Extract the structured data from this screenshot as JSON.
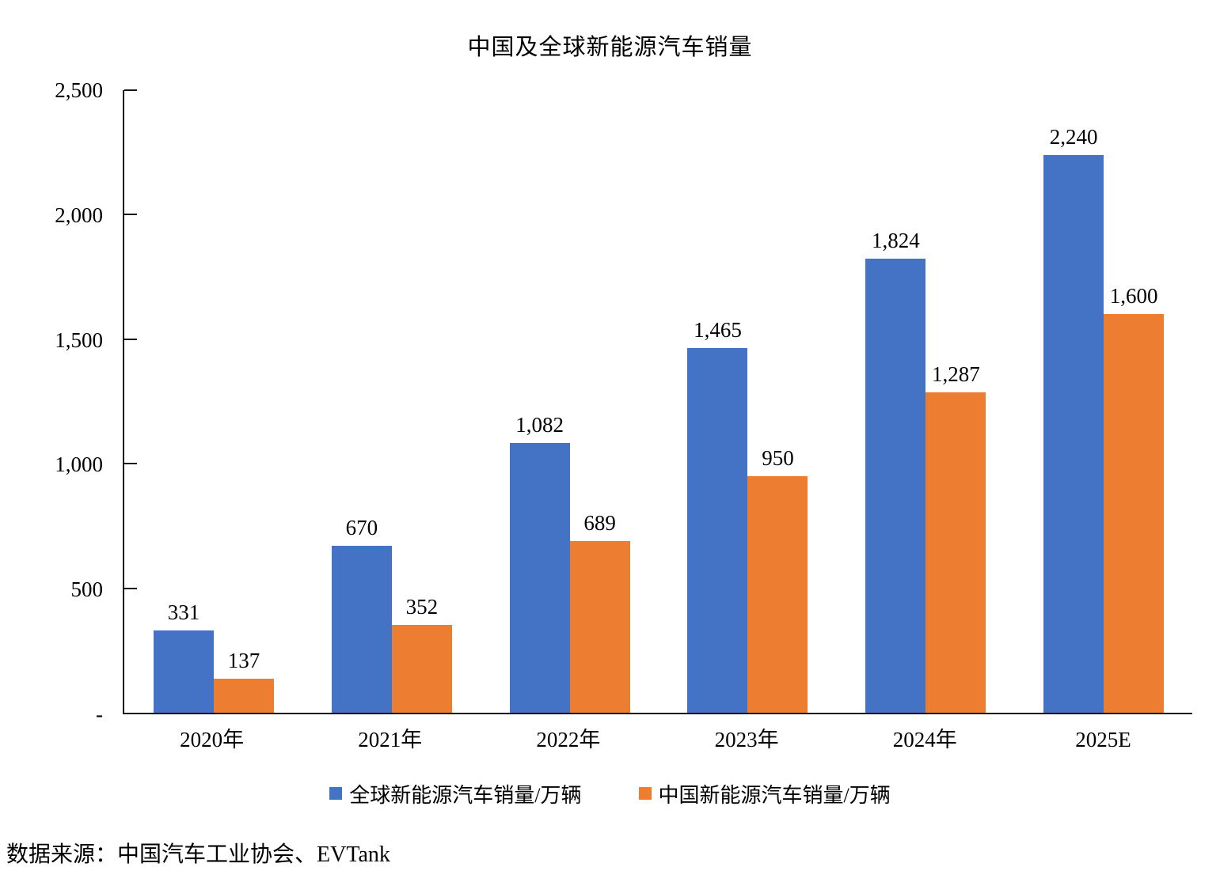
{
  "source_note": "数据来源：中国汽车工业协会、EVTank",
  "colors": {
    "global_series": "#4472C4",
    "china_series": "#ED7D31",
    "axis": "#161616",
    "text": "#000000",
    "background": "#FFFFFF"
  },
  "chart_data": {
    "type": "bar",
    "title": "中国及全球新能源汽车销量",
    "categories": [
      "2020年",
      "2021年",
      "2022年",
      "2023年",
      "2024年",
      "2025E"
    ],
    "series": [
      {
        "name": "全球新能源汽车销量/万辆",
        "color": "#4472C4",
        "values": [
          331,
          670,
          1082,
          1465,
          1824,
          2240
        ],
        "labels": [
          "331",
          "670",
          "1,082",
          "1,465",
          "1,824",
          "2,240"
        ]
      },
      {
        "name": "中国新能源汽车销量/万辆",
        "color": "#ED7D31",
        "values": [
          137,
          352,
          689,
          950,
          1287,
          1600
        ],
        "labels": [
          "137",
          "352",
          "689",
          "950",
          "1,287",
          "1,600"
        ]
      }
    ],
    "xlabel": "",
    "ylabel": "",
    "ylim": [
      0,
      2500
    ],
    "yticks": [
      {
        "value": 0,
        "label": "-"
      },
      {
        "value": 500,
        "label": "500"
      },
      {
        "value": 1000,
        "label": "1,000"
      },
      {
        "value": 1500,
        "label": "1,500"
      },
      {
        "value": 2000,
        "label": "2,000"
      },
      {
        "value": 2500,
        "label": "2,500"
      }
    ],
    "grid": false,
    "legend_position": "bottom",
    "data_labels": true
  }
}
